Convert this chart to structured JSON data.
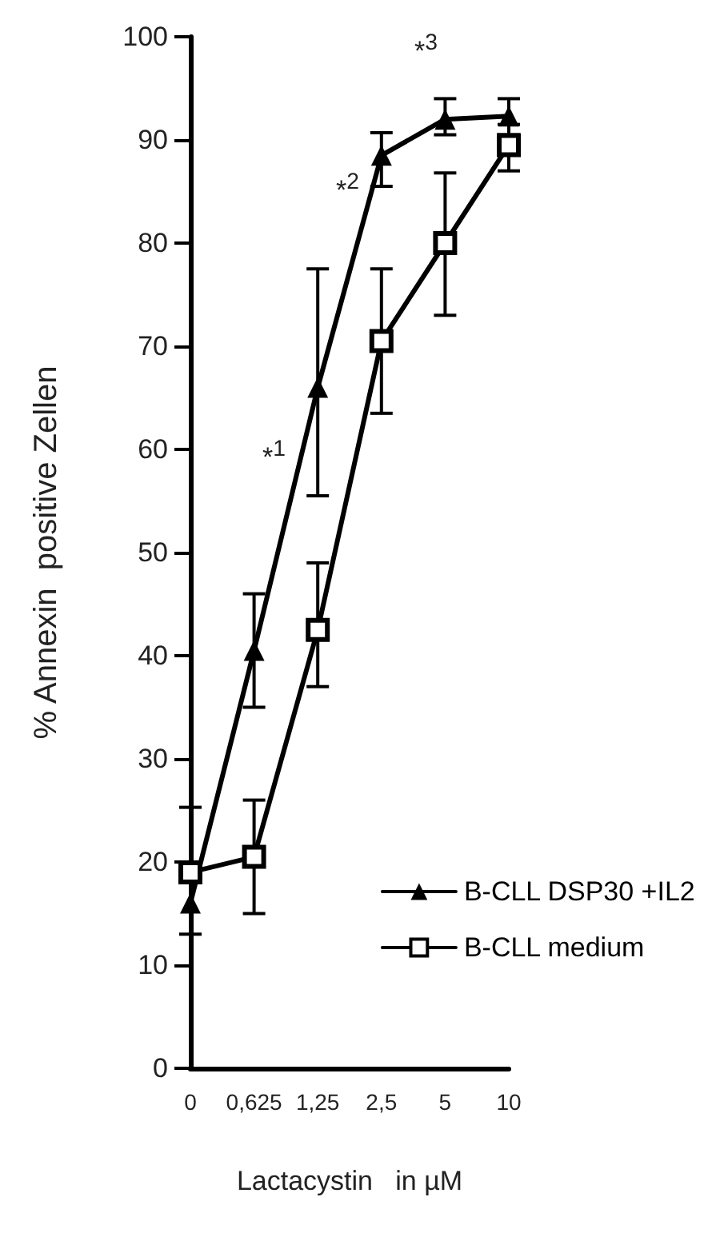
{
  "chart_data": {
    "type": "line",
    "xlabel": "Lactacystin   in µM",
    "ylabel": "% Annexin  positive Zellen",
    "categories": [
      "0",
      "0,625",
      "1,25",
      "2,5",
      "5",
      "10"
    ],
    "series": [
      {
        "name": "B-CLL DSP30 +IL2",
        "color": "#000000",
        "marker": "triangle",
        "values": [
          16,
          40.5,
          66,
          88.5,
          92,
          92.3
        ],
        "errors": [
          null,
          [
            35,
            46
          ],
          [
            55.5,
            77.5
          ],
          [
            85.5,
            90.7
          ],
          [
            90.5,
            94
          ],
          [
            90.5,
            94
          ]
        ]
      },
      {
        "name": "B-CLL medium",
        "color": "#000000",
        "marker": "square",
        "values": [
          19,
          20.5,
          42.5,
          70.5,
          80,
          89.5
        ],
        "errors": [
          [
            13,
            25.3
          ],
          [
            15,
            26
          ],
          [
            37,
            49
          ],
          [
            63.5,
            77.5
          ],
          [
            73,
            86.8
          ],
          [
            87,
            91.5
          ]
        ]
      }
    ],
    "ylim": [
      0,
      100
    ],
    "yticks": [
      0,
      10,
      20,
      30,
      40,
      50,
      60,
      70,
      80,
      90,
      100
    ],
    "annotations": [
      "*$^{1}$",
      "*$^{2}$",
      "*$^{3}$"
    ],
    "grid": false,
    "legend": "bottom right",
    "line_style": "solid"
  }
}
